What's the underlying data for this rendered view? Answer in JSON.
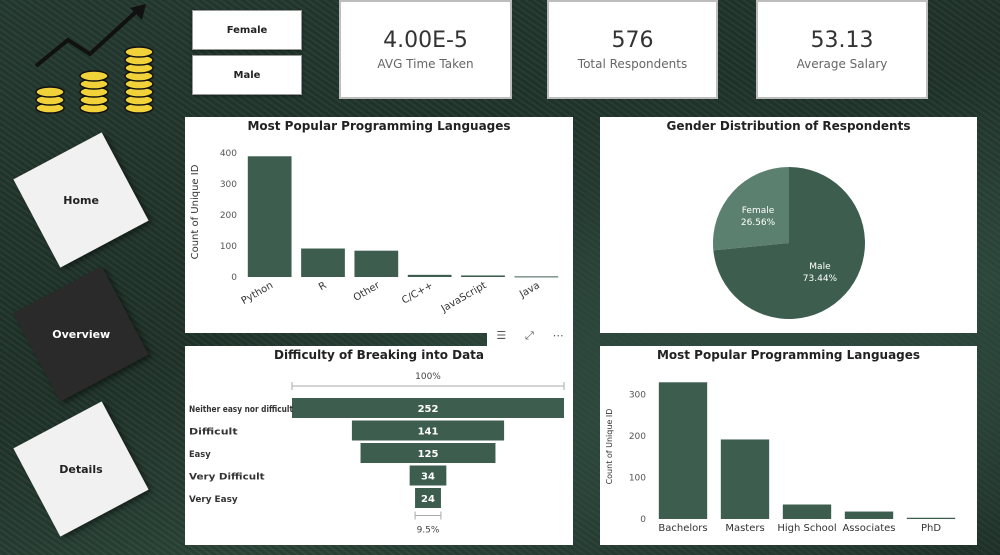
{
  "slicer": {
    "options": [
      "Female",
      "Male"
    ]
  },
  "kpis": [
    {
      "value": "4.00E-5",
      "label": "AVG Time Taken"
    },
    {
      "value": "576",
      "label": "Total Respondents"
    },
    {
      "value": "53.13",
      "label": "Average Salary"
    }
  ],
  "nav": {
    "home": "Home",
    "overview": "Overview",
    "details": "Details"
  },
  "colors": {
    "primary": "#3d5e4f",
    "secondary": "#5c8070",
    "background": "#1f3229"
  },
  "chart_data": [
    {
      "type": "bar",
      "title": "Most Popular Programming Languages",
      "ylabel": "Count of Unique ID",
      "categories": [
        "Python",
        "R",
        "Other",
        "C/C++",
        "JavaScript",
        "Java"
      ],
      "values": [
        390,
        92,
        85,
        7,
        5,
        2
      ],
      "yticks": [
        0,
        100,
        200,
        300,
        400
      ],
      "ylim": [
        0,
        420
      ]
    },
    {
      "type": "pie",
      "title": "Gender Distribution of Respondents",
      "slices": [
        {
          "label": "Female",
          "pct": "26.56%",
          "value": 26.56
        },
        {
          "label": "Male",
          "pct": "73.44%",
          "value": 73.44
        }
      ]
    },
    {
      "type": "funnel",
      "title": "Difficulty of Breaking into Data",
      "top_pct": "100%",
      "bottom_pct": "9.5%",
      "categories": [
        "Neither easy nor difficult",
        "Difficult",
        "Easy",
        "Very Difficult",
        "Very Easy"
      ],
      "values": [
        252,
        141,
        125,
        34,
        24
      ]
    },
    {
      "type": "bar",
      "title": "Most Popular Programming Languages",
      "ylabel": "Count of Unique ID",
      "categories": [
        "Bachelors",
        "Masters",
        "High School",
        "Associates",
        "PhD"
      ],
      "values": [
        330,
        192,
        35,
        18,
        3
      ],
      "yticks": [
        0,
        100,
        200,
        300
      ],
      "ylim": [
        0,
        350
      ]
    }
  ]
}
